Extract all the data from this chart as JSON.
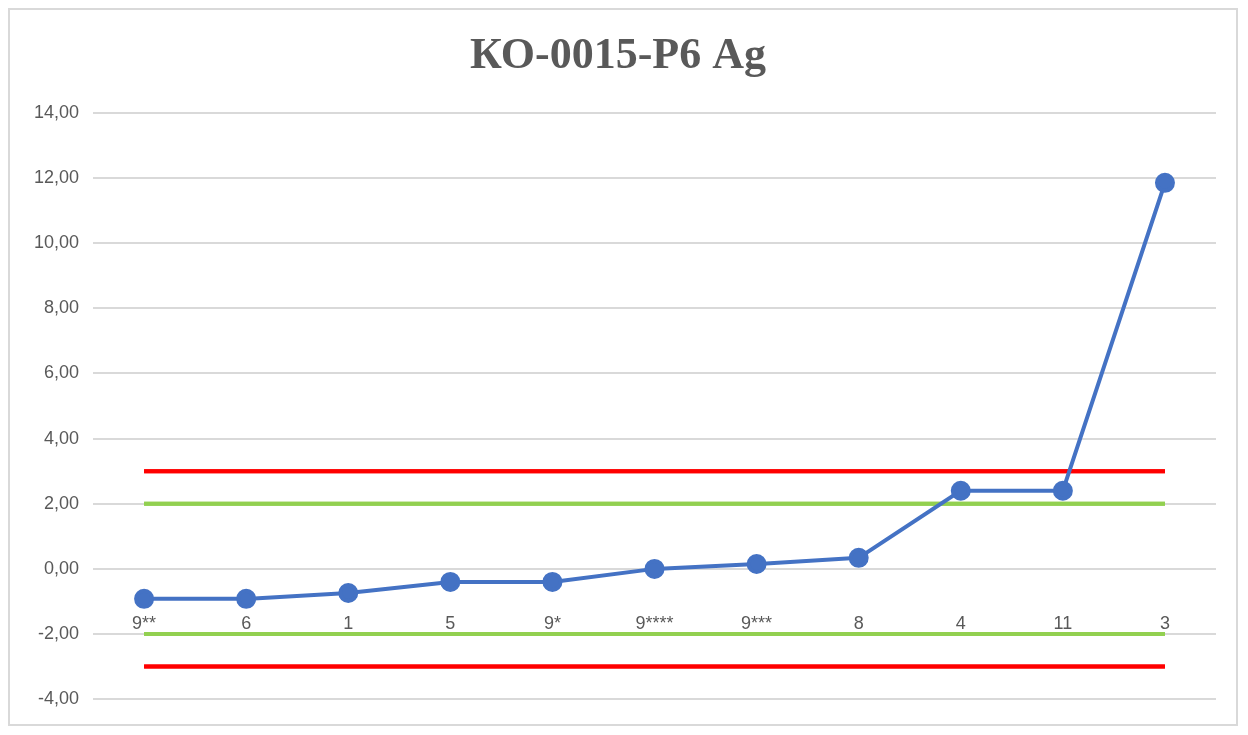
{
  "chart_data": {
    "type": "line",
    "title": "КО-0015-Р6 Ag",
    "categories": [
      "9**",
      "6",
      "1",
      "5",
      "9*",
      "9****",
      "9***",
      "8",
      "4",
      "11",
      "3"
    ],
    "series": [
      {
        "color": "#4472c4",
        "values": [
          -0.92,
          -0.92,
          -0.74,
          -0.4,
          -0.4,
          0.0,
          0.15,
          0.34,
          2.4,
          2.4,
          11.85
        ]
      }
    ],
    "ylim": [
      -4,
      14
    ],
    "yticks": [
      {
        "value": -4,
        "label": "-4,00"
      },
      {
        "value": -2,
        "label": "-2,00"
      },
      {
        "value": 0,
        "label": "0,00"
      },
      {
        "value": 2,
        "label": "2,00"
      },
      {
        "value": 4,
        "label": "4,00"
      },
      {
        "value": 6,
        "label": "6,00"
      },
      {
        "value": 8,
        "label": "8,00"
      },
      {
        "value": 10,
        "label": "10,00"
      },
      {
        "value": 12,
        "label": "12,00"
      },
      {
        "value": 14,
        "label": "14,00"
      }
    ],
    "ref_lines": [
      {
        "axis": "y",
        "value": 3,
        "color": "#ff0000"
      },
      {
        "axis": "y",
        "value": 2,
        "color": "#92d050"
      },
      {
        "axis": "y",
        "value": -2,
        "color": "#92d050"
      },
      {
        "axis": "y",
        "value": -3,
        "color": "#ff0000"
      }
    ],
    "grid": "y",
    "legend": false,
    "marker": "circle",
    "line_style": "solid"
  }
}
